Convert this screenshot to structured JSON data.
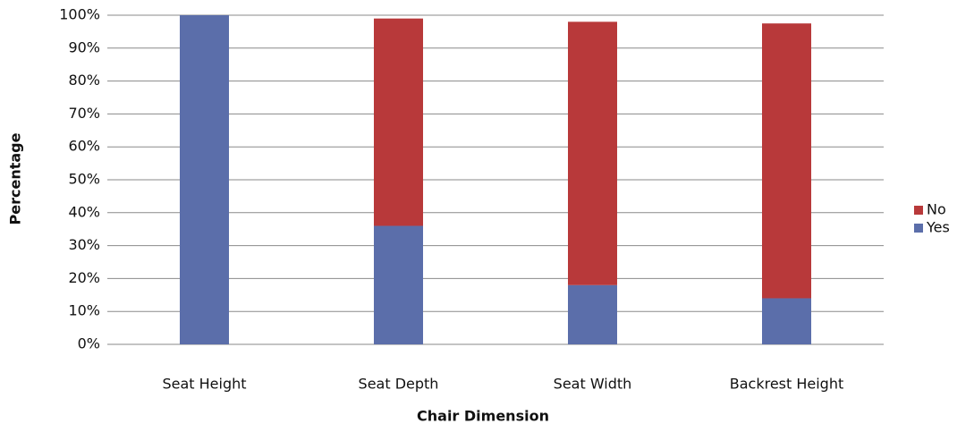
{
  "chart_data": {
    "type": "stacked_bar",
    "x_label": "Chair Dimension",
    "y_label": "Percentage",
    "categories": [
      "Seat Height",
      "Seat Depth",
      "Seat Width",
      "Backrest Height"
    ],
    "series": [
      {
        "name": "Yes",
        "color": "#5b6eaa",
        "values": [
          100,
          36,
          18,
          14
        ]
      },
      {
        "name": "No",
        "color": "#b8393a",
        "values": [
          0,
          63,
          80,
          83.5
        ]
      }
    ],
    "ylim": [
      0,
      100
    ],
    "yticks": [
      {
        "value": 0,
        "label": "0%"
      },
      {
        "value": 10,
        "label": "10%"
      },
      {
        "value": 20,
        "label": "20%"
      },
      {
        "value": 30,
        "label": "30%"
      },
      {
        "value": 40,
        "label": "40%"
      },
      {
        "value": 50,
        "label": "50%"
      },
      {
        "value": 60,
        "label": "60%"
      },
      {
        "value": 70,
        "label": "70%"
      },
      {
        "value": 80,
        "label": "80%"
      },
      {
        "value": 90,
        "label": "90%"
      },
      {
        "value": 100,
        "label": "100%"
      }
    ],
    "grid": true,
    "legend": "right"
  }
}
